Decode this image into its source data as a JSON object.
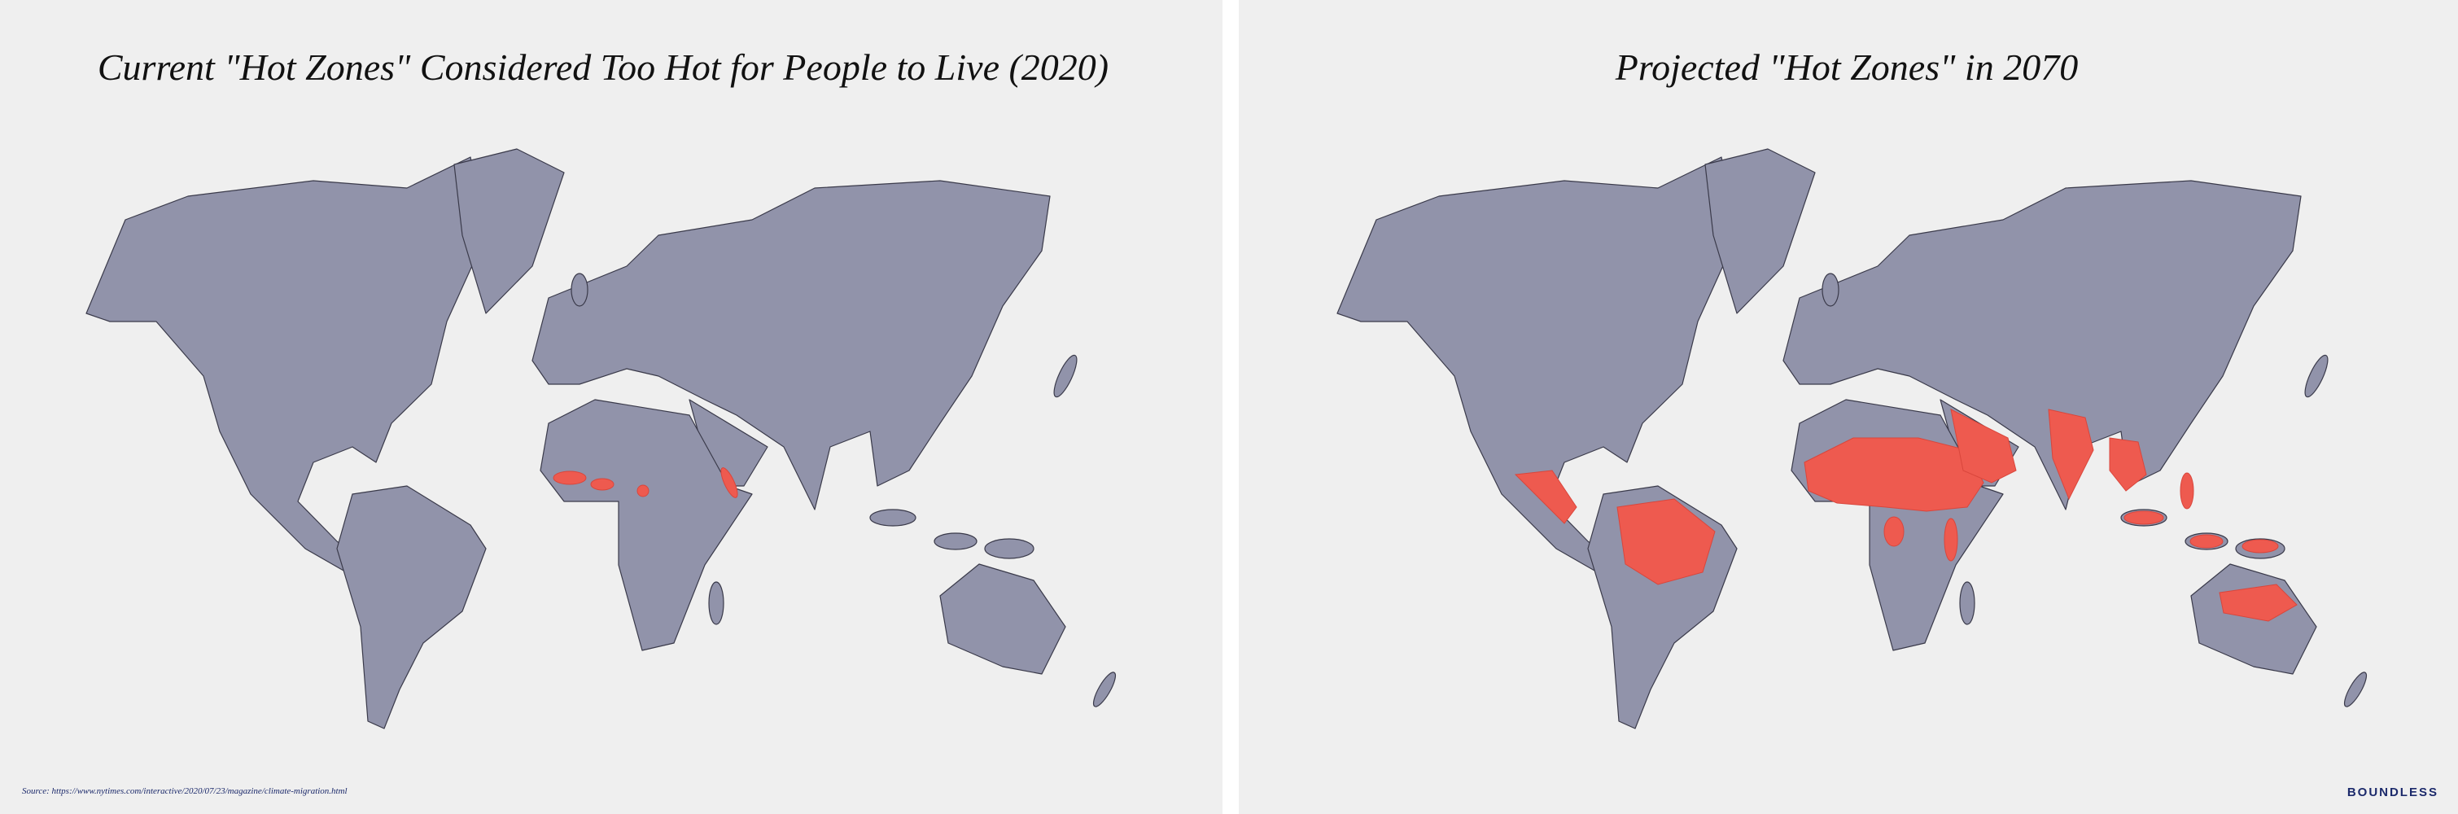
{
  "panels": [
    {
      "title": "Current \"Hot Zones\" Considered Too Hot for People to Live (2020)"
    },
    {
      "title": "Projected \"Hot Zones\" in 2070"
    }
  ],
  "footer": {
    "source": "Source: https://www.nytimes.com/interactive/2020/07/23/magazine/climate-migration.html",
    "brand": "BOUNDLESS"
  }
}
